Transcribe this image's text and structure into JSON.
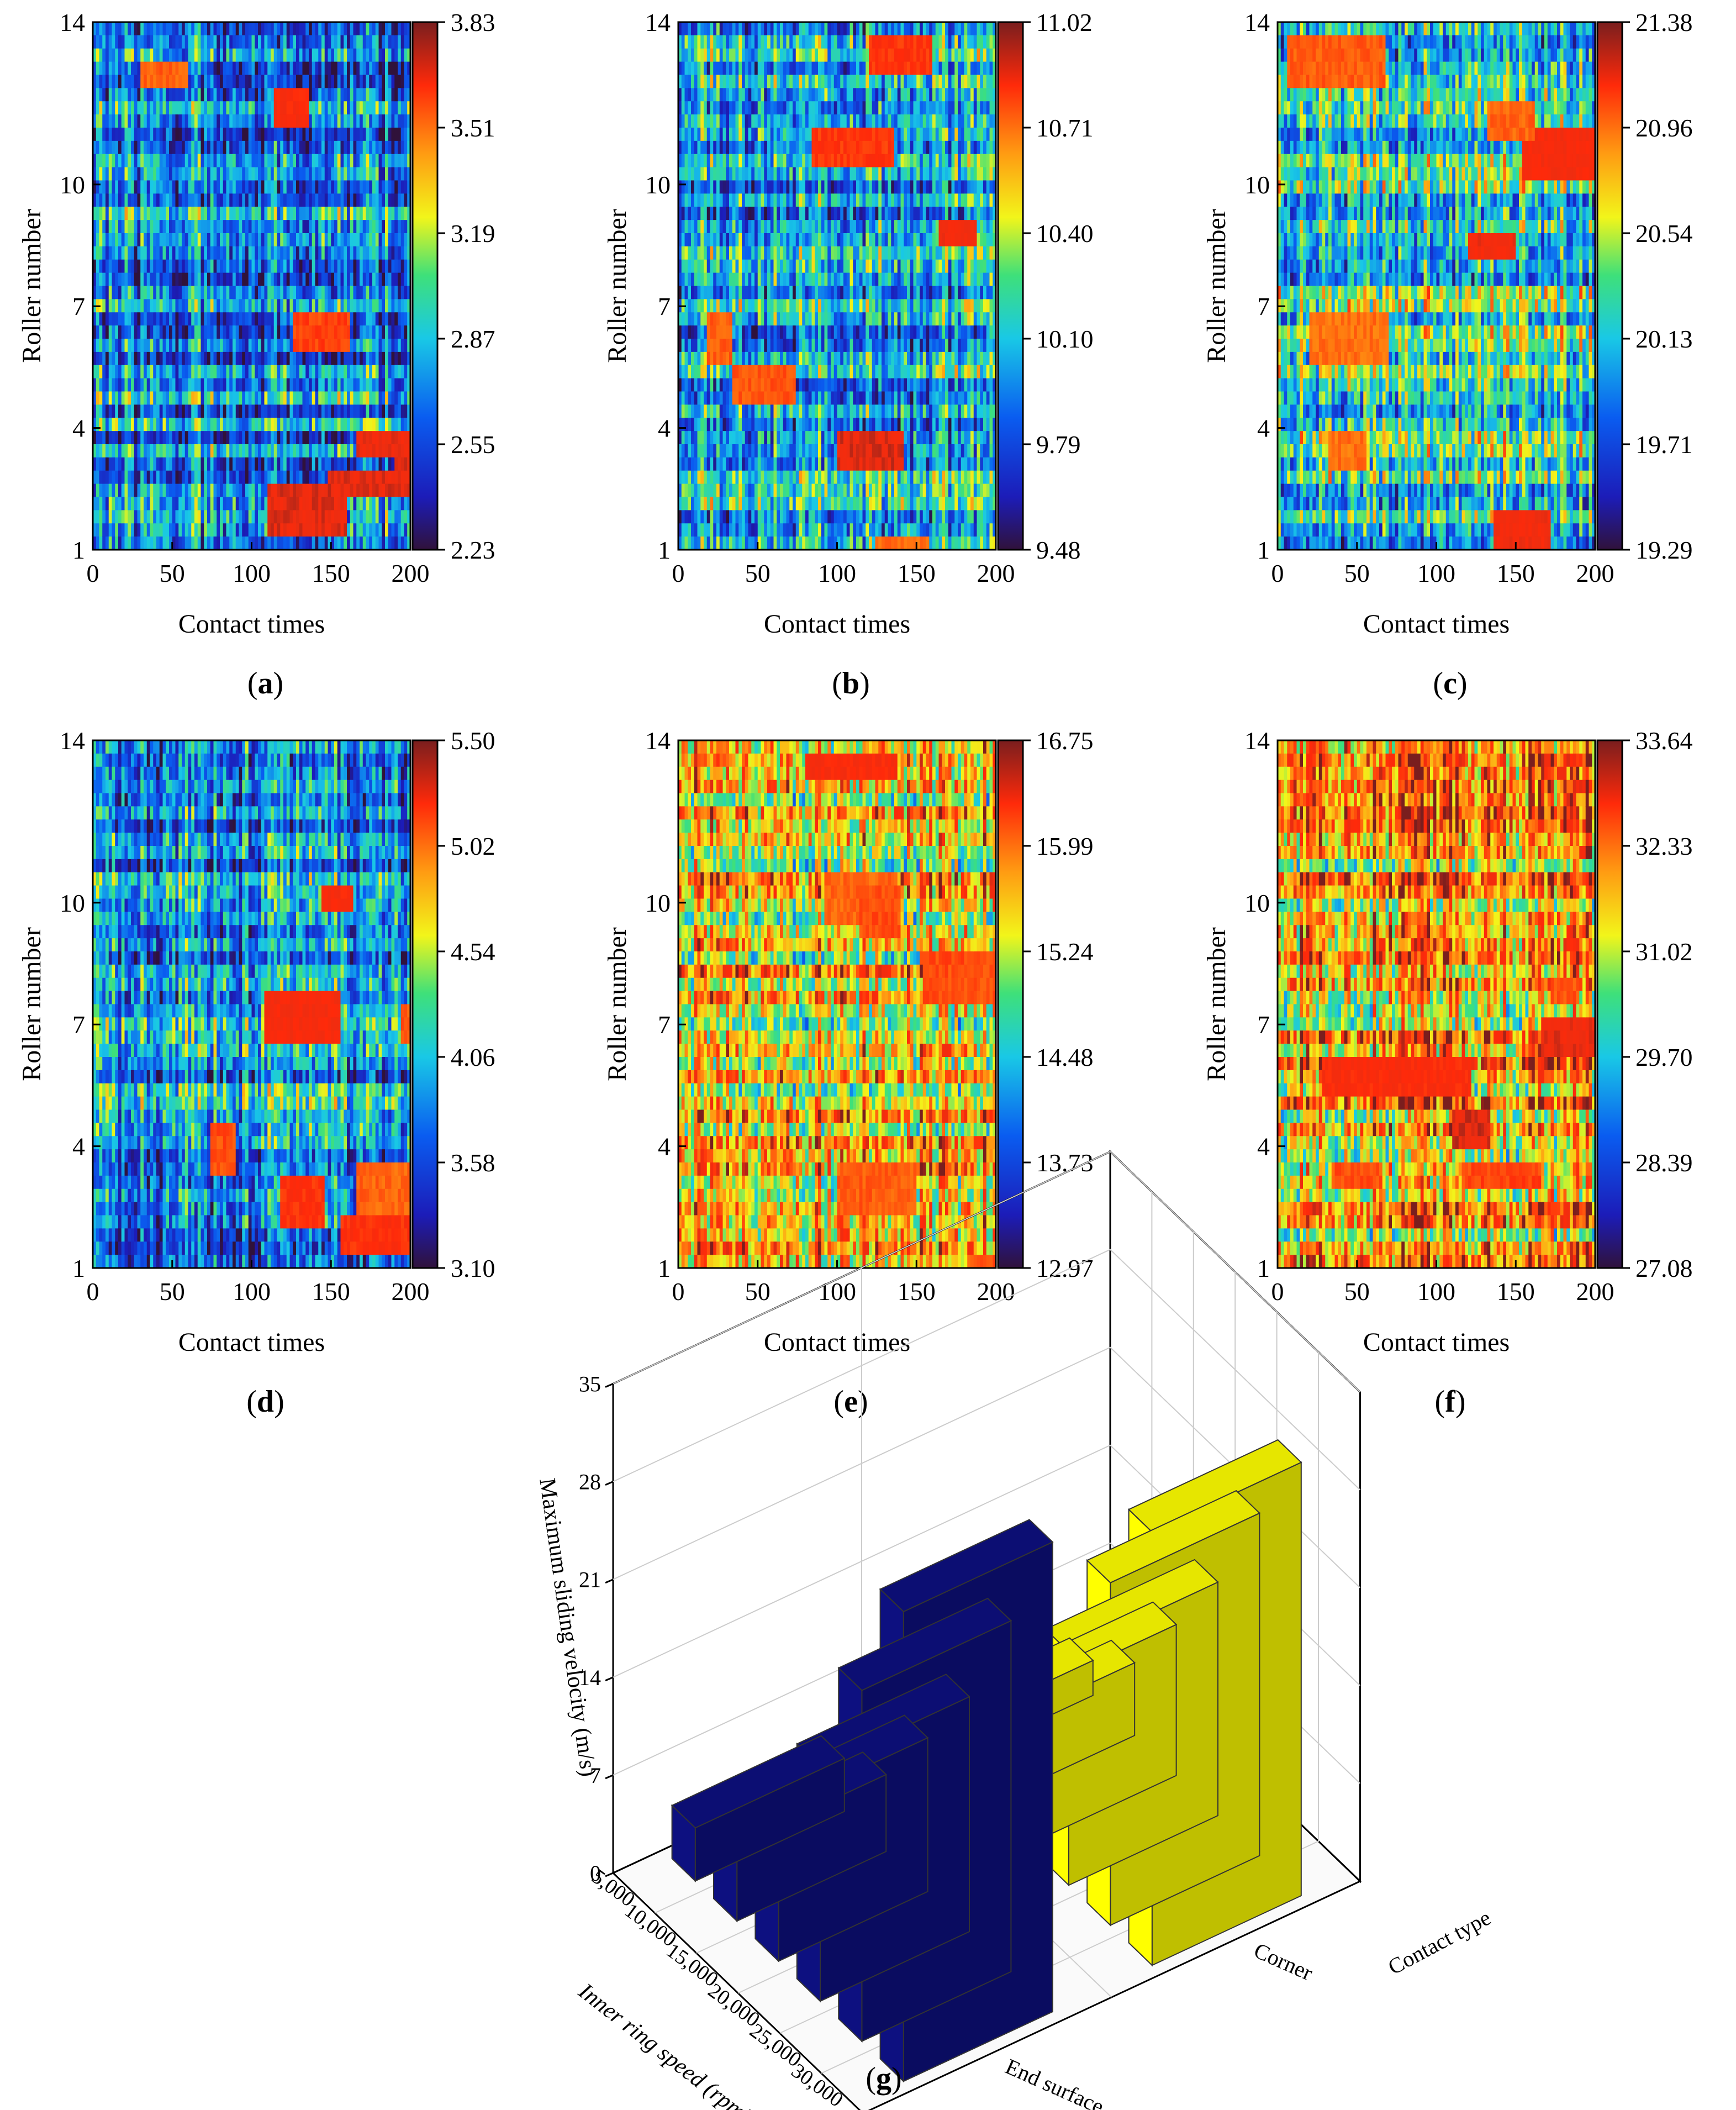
{
  "figure": {
    "heatmap_common": {
      "xlabel": "Contact times",
      "ylabel": "Roller number",
      "xticks": [
        0,
        50,
        100,
        150,
        200
      ],
      "yticks": [
        1,
        4,
        7,
        10,
        14
      ],
      "xlim": [
        0,
        200
      ],
      "ylim": [
        1,
        14
      ],
      "colormap": [
        "#30123b",
        "#1c1cb8",
        "#0a5cf0",
        "#19c8e6",
        "#3ee07a",
        "#f2f51a",
        "#ff9c12",
        "#ff2a0a",
        "#ee2d10",
        "#7a1e1e"
      ]
    },
    "panels": [
      {
        "label": "a",
        "colorbar_ticks": [
          "3.83",
          "3.51",
          "3.19",
          "2.87",
          "2.55",
          "2.23"
        ]
      },
      {
        "label": "b",
        "colorbar_ticks": [
          "11.02",
          "10.71",
          "10.40",
          "10.10",
          "9.79",
          "9.48"
        ]
      },
      {
        "label": "c",
        "colorbar_ticks": [
          "21.38",
          "20.96",
          "20.54",
          "20.13",
          "19.71",
          "19.29"
        ]
      },
      {
        "label": "d",
        "colorbar_ticks": [
          "5.50",
          "5.02",
          "4.54",
          "4.06",
          "3.58",
          "3.10"
        ]
      },
      {
        "label": "e",
        "colorbar_ticks": [
          "16.75",
          "15.99",
          "15.24",
          "14.48",
          "13.73",
          "12.97"
        ]
      },
      {
        "label": "f",
        "colorbar_ticks": [
          "33.64",
          "32.33",
          "31.02",
          "29.70",
          "28.39",
          "27.08"
        ]
      }
    ],
    "panel_g_label": "g"
  },
  "chart_data": [
    {
      "type": "heatmap",
      "panel": "a",
      "title": "",
      "xlabel": "Contact times",
      "ylabel": "Roller number",
      "xlim": [
        0,
        200
      ],
      "ylim": [
        1,
        14
      ],
      "zlim": [
        2.23,
        3.83
      ],
      "mean_level": 0.3
    },
    {
      "type": "heatmap",
      "panel": "b",
      "title": "",
      "xlabel": "Contact times",
      "ylabel": "Roller number",
      "xlim": [
        0,
        200
      ],
      "ylim": [
        1,
        14
      ],
      "zlim": [
        9.48,
        11.02
      ],
      "mean_level": 0.35
    },
    {
      "type": "heatmap",
      "panel": "c",
      "title": "",
      "xlabel": "Contact times",
      "ylabel": "Roller number",
      "xlim": [
        0,
        200
      ],
      "ylim": [
        1,
        14
      ],
      "zlim": [
        19.29,
        21.38
      ],
      "mean_level": 0.45
    },
    {
      "type": "heatmap",
      "panel": "d",
      "title": "",
      "xlabel": "Contact times",
      "ylabel": "Roller number",
      "xlim": [
        0,
        200
      ],
      "ylim": [
        1,
        14
      ],
      "zlim": [
        3.1,
        5.5
      ],
      "mean_level": 0.32
    },
    {
      "type": "heatmap",
      "panel": "e",
      "title": "",
      "xlabel": "Contact times",
      "ylabel": "Roller number",
      "xlim": [
        0,
        200
      ],
      "ylim": [
        1,
        14
      ],
      "zlim": [
        12.97,
        16.75
      ],
      "mean_level": 0.68
    },
    {
      "type": "heatmap",
      "panel": "f",
      "title": "",
      "xlabel": "Contact times",
      "ylabel": "Roller number",
      "xlim": [
        0,
        200
      ],
      "ylim": [
        1,
        14
      ],
      "zlim": [
        27.08,
        33.64
      ],
      "mean_level": 0.72
    },
    {
      "type": "bar3d",
      "panel": "g",
      "xlabel": "Inner ring speed (rpm)",
      "ylabel": "Contact type",
      "zlabel": "Maximum sliding velocity (m/s)",
      "x_categories": [
        "5,000",
        "10,000",
        "15,000",
        "20,000",
        "25,000",
        "30,000"
      ],
      "y_categories": [
        "End surface",
        "Corner"
      ],
      "z_ticks": [
        "0",
        "7",
        "14",
        "21",
        "28",
        "35"
      ],
      "zlim": [
        0,
        35
      ],
      "series": [
        {
          "name": "End surface",
          "color": "#0d1080",
          "values": [
            3.8,
            5.5,
            11.0,
            16.8,
            25.1,
            33.6
          ]
        },
        {
          "name": "Corner",
          "color": "#ffff00",
          "values": [
            2.5,
            5.2,
            10.8,
            16.7,
            24.5,
            31.0
          ]
        }
      ]
    }
  ]
}
